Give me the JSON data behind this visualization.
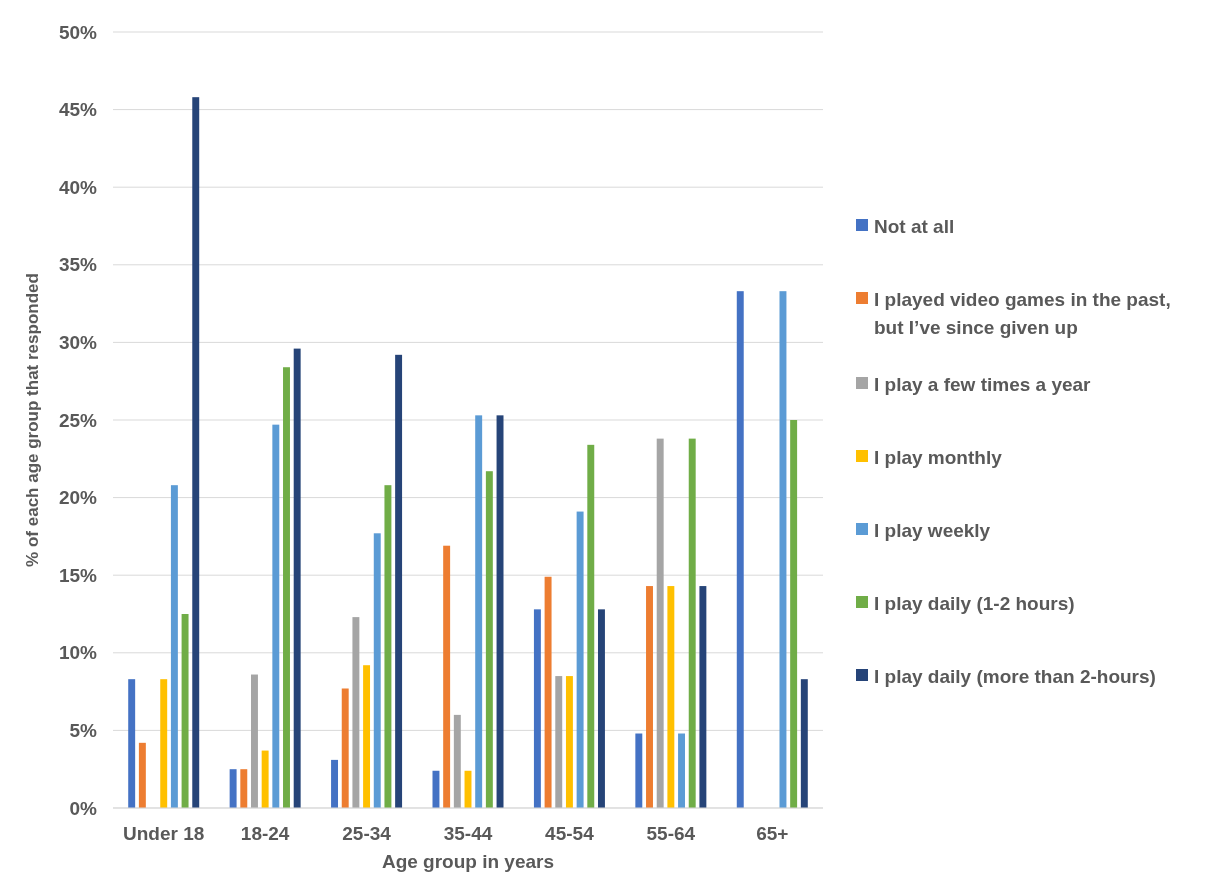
{
  "chart_data": {
    "type": "bar",
    "xlabel": "Age group in years",
    "ylabel": "% of each age group that responded",
    "categories": [
      "Under 18",
      "18-24",
      "25-34",
      "35-44",
      "45-54",
      "55-64",
      "65+"
    ],
    "series": [
      {
        "name": "Not at all",
        "color": "#4472c4",
        "values": [
          8.3,
          2.5,
          3.1,
          2.4,
          12.8,
          4.8,
          33.3
        ]
      },
      {
        "name": "I played video games in the past, but I’ve since given up",
        "color": "#ed7d31",
        "values": [
          4.2,
          2.5,
          7.7,
          16.9,
          14.9,
          14.3,
          0
        ]
      },
      {
        "name": "I play a few times a year",
        "color": "#a5a5a5",
        "values": [
          0,
          8.6,
          12.3,
          6.0,
          8.5,
          23.8,
          0
        ]
      },
      {
        "name": "I play monthly",
        "color": "#ffc000",
        "values": [
          8.3,
          3.7,
          9.2,
          2.4,
          8.5,
          14.3,
          0
        ]
      },
      {
        "name": "I play weekly",
        "color": "#5b9bd5",
        "values": [
          20.8,
          24.7,
          17.7,
          25.3,
          19.1,
          4.8,
          33.3
        ]
      },
      {
        "name": "I play daily (1-2 hours)",
        "color": "#70ad47",
        "values": [
          12.5,
          28.4,
          20.8,
          21.7,
          23.4,
          23.8,
          25.0
        ]
      },
      {
        "name": "I play daily (more than 2-hours)",
        "color": "#264478",
        "values": [
          45.8,
          29.6,
          29.2,
          25.3,
          12.8,
          14.3,
          8.3
        ]
      }
    ],
    "ylim": [
      0,
      50
    ],
    "yticks": [
      {
        "value": 0,
        "label": "0%"
      },
      {
        "value": 5,
        "label": "5%"
      },
      {
        "value": 10,
        "label": "10%"
      },
      {
        "value": 15,
        "label": "15%"
      },
      {
        "value": 20,
        "label": "20%"
      },
      {
        "value": 25,
        "label": "25%"
      },
      {
        "value": 30,
        "label": "30%"
      },
      {
        "value": 35,
        "label": "35%"
      },
      {
        "value": 40,
        "label": "40%"
      },
      {
        "value": 45,
        "label": "45%"
      },
      {
        "value": 50,
        "label": "50%"
      }
    ],
    "grid": "y",
    "legend": "right"
  }
}
